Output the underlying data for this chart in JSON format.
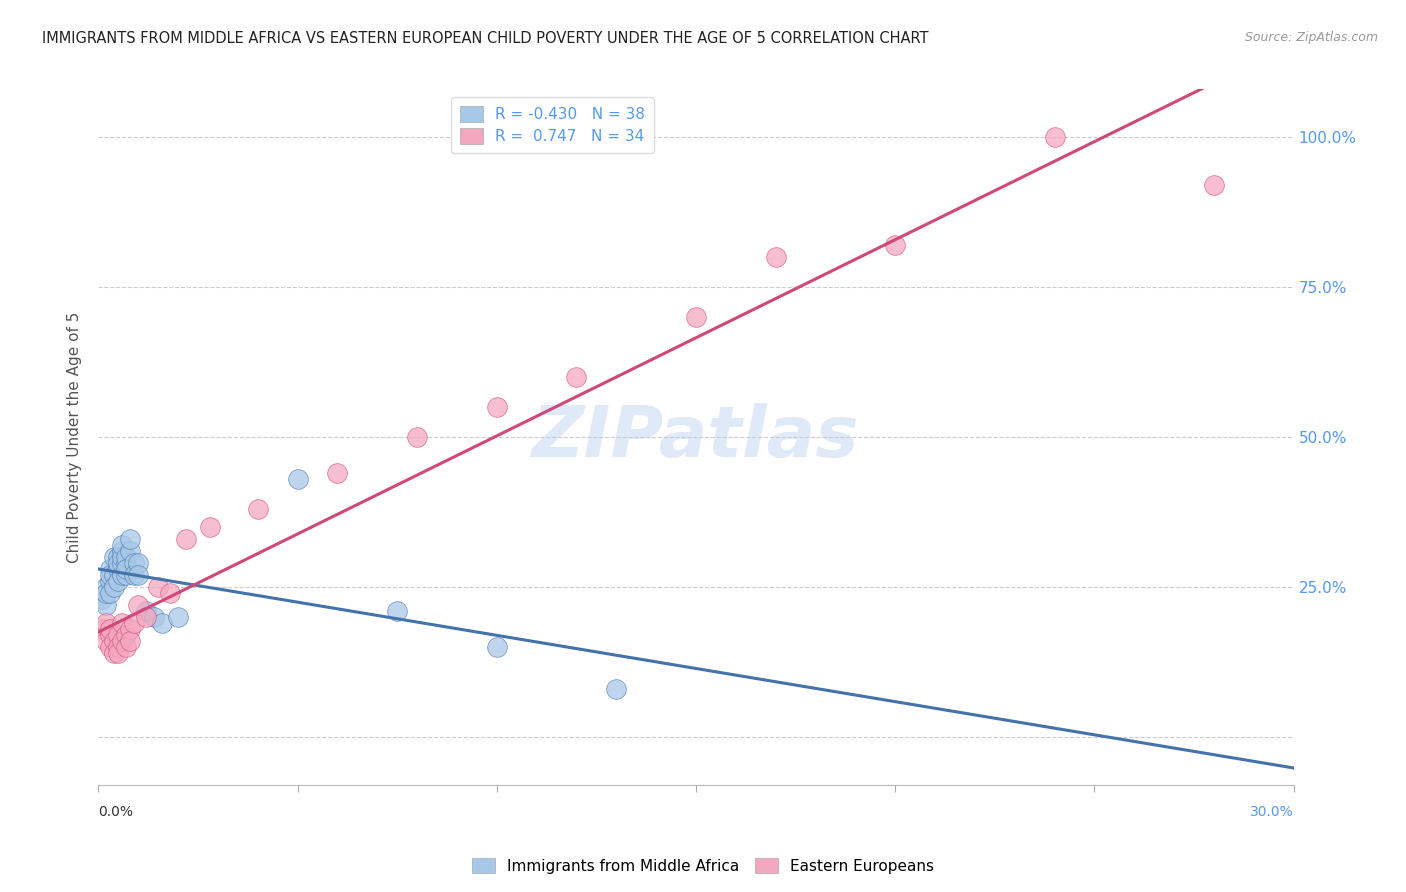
{
  "title": "IMMIGRANTS FROM MIDDLE AFRICA VS EASTERN EUROPEAN CHILD POVERTY UNDER THE AGE OF 5 CORRELATION CHART",
  "source": "Source: ZipAtlas.com",
  "ylabel": "Child Poverty Under the Age of 5",
  "xlim": [
    0.0,
    0.3
  ],
  "ylim": [
    -0.08,
    1.08
  ],
  "legend_labels": [
    "Immigrants from Middle Africa",
    "Eastern Europeans"
  ],
  "legend_R": [
    -0.43,
    0.747
  ],
  "legend_N": [
    38,
    34
  ],
  "blue_color": "#a8c8e8",
  "pink_color": "#f4a8c0",
  "blue_line_color": "#4472aa",
  "pink_line_color": "#d04878",
  "title_color": "#222222",
  "axis_label_color": "#555555",
  "right_axis_color": "#5599ee",
  "watermark": "ZIPatlas",
  "blue_scatter_x": [
    0.001,
    0.002,
    0.002,
    0.002,
    0.003,
    0.003,
    0.003,
    0.003,
    0.004,
    0.004,
    0.004,
    0.005,
    0.005,
    0.005,
    0.005,
    0.006,
    0.006,
    0.006,
    0.006,
    0.006,
    0.007,
    0.007,
    0.007,
    0.007,
    0.008,
    0.008,
    0.009,
    0.009,
    0.01,
    0.01,
    0.012,
    0.014,
    0.016,
    0.02,
    0.05,
    0.075,
    0.1,
    0.13
  ],
  "blue_scatter_y": [
    0.23,
    0.25,
    0.22,
    0.24,
    0.26,
    0.28,
    0.27,
    0.24,
    0.3,
    0.27,
    0.25,
    0.28,
    0.3,
    0.26,
    0.29,
    0.31,
    0.27,
    0.29,
    0.3,
    0.32,
    0.27,
    0.29,
    0.3,
    0.28,
    0.31,
    0.33,
    0.29,
    0.27,
    0.29,
    0.27,
    0.21,
    0.2,
    0.19,
    0.2,
    0.43,
    0.21,
    0.15,
    0.08
  ],
  "pink_scatter_x": [
    0.001,
    0.002,
    0.002,
    0.003,
    0.003,
    0.003,
    0.004,
    0.004,
    0.005,
    0.005,
    0.005,
    0.006,
    0.006,
    0.007,
    0.007,
    0.008,
    0.008,
    0.009,
    0.01,
    0.012,
    0.015,
    0.018,
    0.022,
    0.028,
    0.04,
    0.06,
    0.08,
    0.1,
    0.12,
    0.15,
    0.17,
    0.2,
    0.24,
    0.28
  ],
  "pink_scatter_y": [
    0.18,
    0.16,
    0.19,
    0.17,
    0.15,
    0.18,
    0.16,
    0.14,
    0.17,
    0.15,
    0.14,
    0.16,
    0.19,
    0.17,
    0.15,
    0.18,
    0.16,
    0.19,
    0.22,
    0.2,
    0.25,
    0.24,
    0.33,
    0.35,
    0.38,
    0.44,
    0.5,
    0.55,
    0.6,
    0.7,
    0.8,
    0.82,
    1.0,
    0.92
  ],
  "grid_color": "#cccccc",
  "background_color": "#ffffff",
  "ytick_positions": [
    0.0,
    0.25,
    0.5,
    0.75,
    1.0
  ],
  "ytick_labels_right": [
    "",
    "25.0%",
    "50.0%",
    "75.0%",
    "100.0%"
  ],
  "xtick_positions": [
    0.0,
    0.05,
    0.1,
    0.15,
    0.2,
    0.25,
    0.3
  ]
}
